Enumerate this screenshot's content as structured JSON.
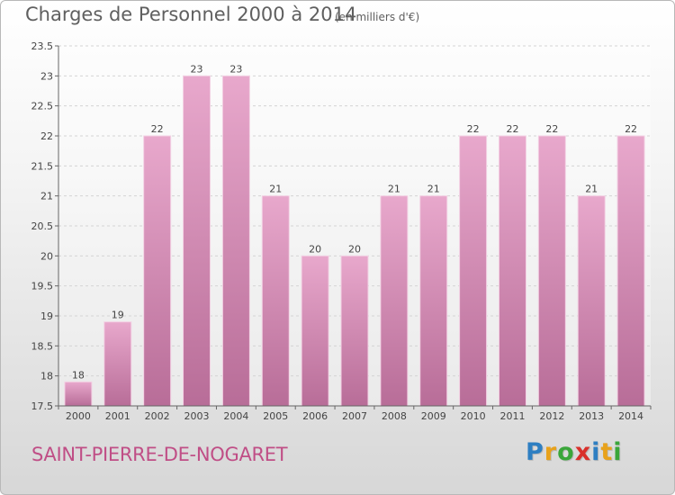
{
  "header": {
    "title": "Charges de Personnel 2000 à 2014",
    "subtitle": "(en milliers d'€)"
  },
  "footer": {
    "commune": "SAINT-PIERRE-DE-NOGARET",
    "logo": {
      "text": "Proxiti",
      "letters": [
        "P",
        "r",
        "o",
        "x",
        "i",
        "t",
        "i"
      ],
      "colors": [
        "#2e7fc2",
        "#e8a21b",
        "#3aa63a",
        "#d9302b",
        "#2e7fc2",
        "#e8a21b",
        "#3aa63a"
      ]
    }
  },
  "chart_data": {
    "type": "bar",
    "categories": [
      "2000",
      "2001",
      "2002",
      "2003",
      "2004",
      "2005",
      "2006",
      "2007",
      "2008",
      "2009",
      "2010",
      "2011",
      "2012",
      "2013",
      "2014"
    ],
    "values": [
      17.9,
      18.9,
      22,
      23,
      23,
      21,
      20,
      20,
      21,
      21,
      22,
      22,
      22,
      21,
      22
    ],
    "data_labels": [
      "18",
      "19",
      "22",
      "23",
      "23",
      "21",
      "20",
      "20",
      "21",
      "21",
      "22",
      "22",
      "22",
      "21",
      "22"
    ],
    "y_ticks": [
      "17.5",
      "18",
      "18.5",
      "19",
      "19.5",
      "20",
      "20.5",
      "21",
      "21.5",
      "22",
      "22.5",
      "23",
      "23.5"
    ],
    "ylim": [
      17.5,
      23.5
    ],
    "grid": true,
    "bar_color_top": "#e8a8cc",
    "bar_color_bottom": "#b86d98",
    "xlabel": "",
    "ylabel": ""
  }
}
